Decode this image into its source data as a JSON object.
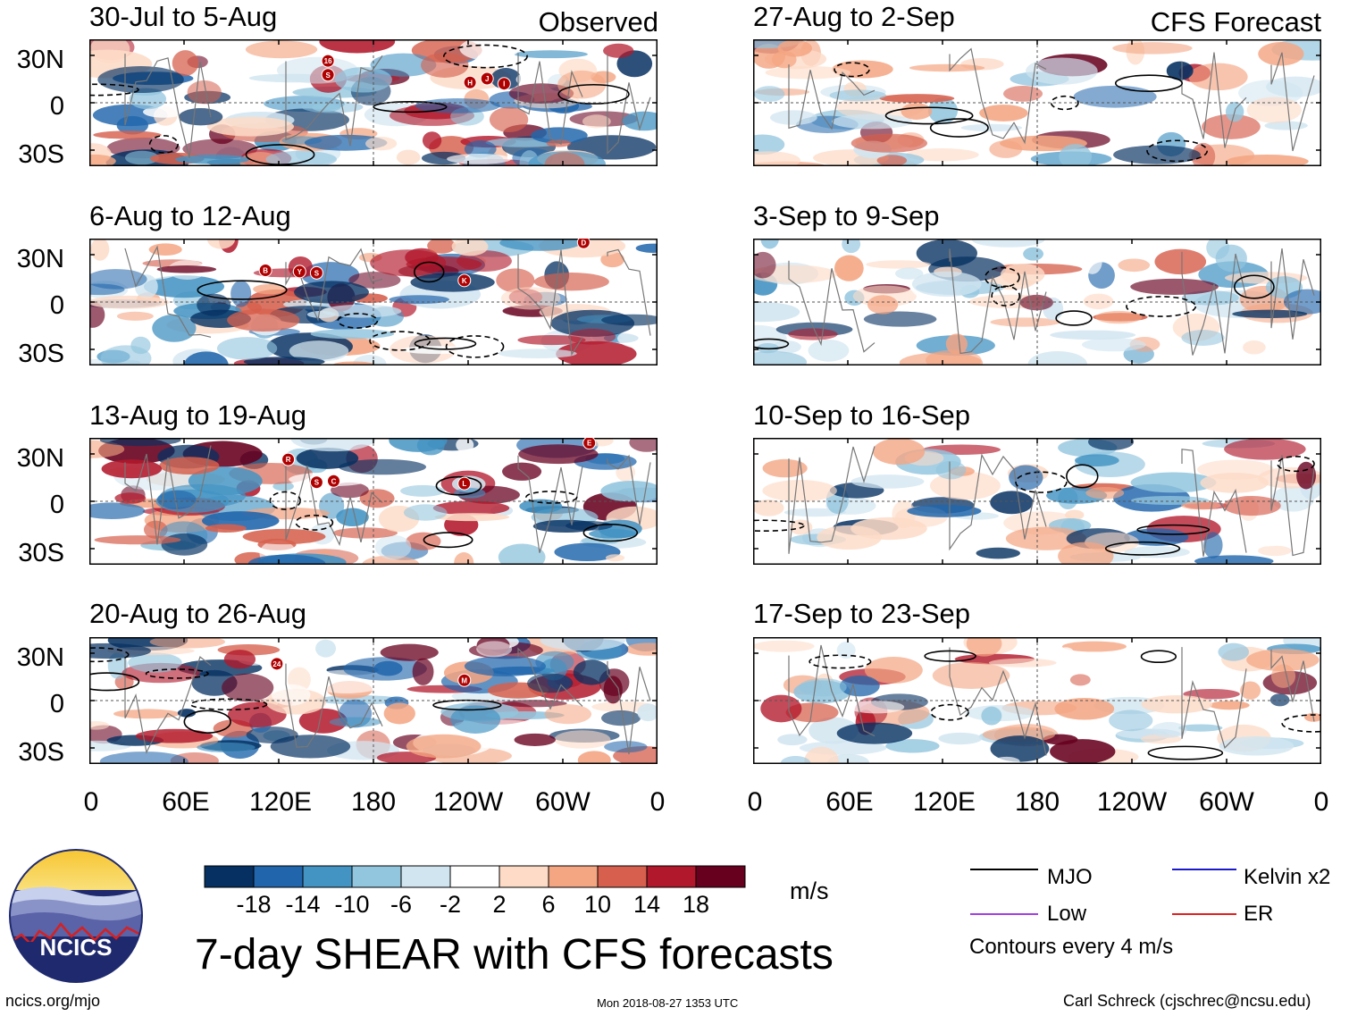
{
  "title": "7-day SHEAR with CFS forecasts",
  "units": "m/s",
  "observed_label": "Observed",
  "forecast_label": "CFS Forecast",
  "lat_labels": [
    "30N",
    "0",
    "30S"
  ],
  "lon_labels": [
    "0",
    "60E",
    "120E",
    "180",
    "120W",
    "60W",
    "0"
  ],
  "panels_observed": [
    {
      "period": "30-Jul to 5-Aug",
      "storms": [
        "16",
        "S",
        "H",
        "J",
        "I"
      ]
    },
    {
      "period": "6-Aug to 12-Aug",
      "storms": [
        "B",
        "Y",
        "S",
        "K",
        "D"
      ]
    },
    {
      "period": "13-Aug to 19-Aug",
      "storms": [
        "R",
        "S",
        "C",
        "L",
        "E"
      ]
    },
    {
      "period": "20-Aug to 26-Aug",
      "storms": [
        "24",
        "M"
      ]
    }
  ],
  "panels_forecast": [
    {
      "period": "27-Aug to 2-Sep"
    },
    {
      "period": "3-Sep to 9-Sep"
    },
    {
      "period": "10-Sep to 16-Sep"
    },
    {
      "period": "17-Sep to 23-Sep"
    }
  ],
  "colorbar": {
    "ticks": [
      "-18",
      "-14",
      "-10",
      "-6",
      "-2",
      "2",
      "6",
      "10",
      "14",
      "18"
    ],
    "colors": [
      "#053061",
      "#2166ac",
      "#4393c3",
      "#92c5de",
      "#d1e5f0",
      "#ffffff",
      "#fddbc7",
      "#f4a582",
      "#d6604d",
      "#b2182b",
      "#67001f"
    ]
  },
  "legend": {
    "items": [
      {
        "label": "MJO",
        "color": "#000000"
      },
      {
        "label": "Kelvin x2",
        "color": "#1a1acc"
      },
      {
        "label": "Low",
        "color": "#a040e0"
      },
      {
        "label": "ER",
        "color": "#dd2222"
      }
    ],
    "contour_note": "Contours every 4 m/s"
  },
  "logo_text": "NCICS",
  "footer": {
    "url": "ncics.org/mjo",
    "timestamp": "Mon 2018-08-27 1353 UTC",
    "author": "Carl Schreck (cjschrec@ncsu.edu)"
  }
}
